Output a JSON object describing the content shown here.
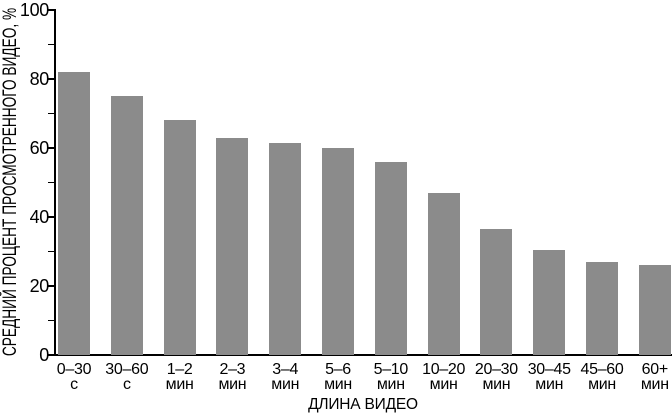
{
  "chart_data": {
    "type": "bar",
    "title": "",
    "ylabel": "СРЕДНИЙ ПРОЦЕНТ ПРОСМОТРЕННОГО ВИДЕО, %",
    "xlabel": "ДЛИНА ВИДЕО",
    "categories": [
      "0–30",
      "30–60",
      "1–2",
      "2–3",
      "3–4",
      "5–6",
      "5–10",
      "10–20",
      "20–30",
      "30–45",
      "45–60",
      "60+"
    ],
    "category_units": [
      "с",
      "с",
      "мин",
      "мин",
      "мин",
      "мин",
      "мин",
      "мин",
      "мин",
      "мин",
      "мин",
      "мин"
    ],
    "values": [
      82,
      75,
      68,
      63,
      61.5,
      60,
      56,
      47,
      36.5,
      30.5,
      27,
      26
    ],
    "ylim": [
      0,
      100
    ],
    "ytick_minor_step": 10,
    "ytick_label_step": 20,
    "ytick_labels": [
      "0",
      "20",
      "40",
      "60",
      "80",
      "100"
    ],
    "grid": false,
    "legend": false,
    "bar_color": "#8b8b8b",
    "axis_color": "#000000",
    "text_color": "#000000"
  }
}
